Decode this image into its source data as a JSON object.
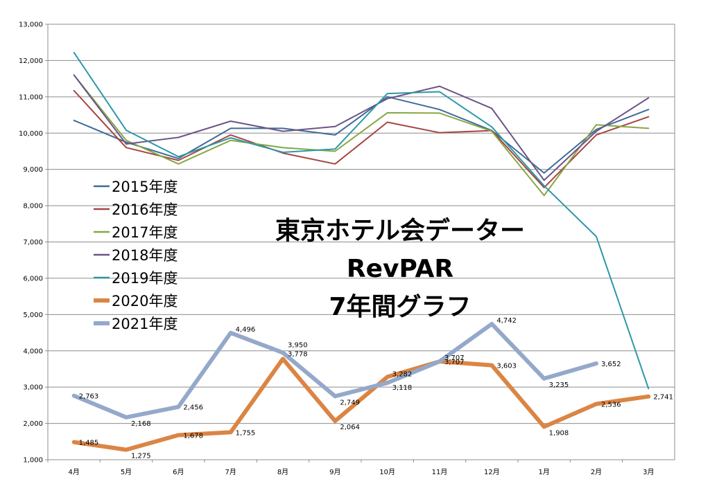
{
  "chart_data": {
    "type": "line",
    "title_lines": [
      "東京ホテル会データー",
      "RevPAR",
      "7年間グラフ"
    ],
    "categories": [
      "4月",
      "5月",
      "6月",
      "7月",
      "8月",
      "9月",
      "10月",
      "11月",
      "12月",
      "1月",
      "2月",
      "3月"
    ],
    "ylim": [
      1000,
      13000
    ],
    "yticks": [
      "1,000",
      "2,000",
      "3,000",
      "4,000",
      "5,000",
      "6,000",
      "7,000",
      "8,000",
      "9,000",
      "10,000",
      "11,000",
      "12,000",
      "13,000"
    ],
    "grid": true,
    "legend_position": "left-middle",
    "series": [
      {
        "name": "2015年度",
        "color": "#3e6b99",
        "width": 2,
        "values": [
          10350,
          9750,
          9300,
          10130,
          10130,
          9950,
          11000,
          10650,
          10070,
          8900,
          10100,
          10650
        ]
      },
      {
        "name": "2016年度",
        "color": "#a64442",
        "width": 2,
        "values": [
          11170,
          9600,
          9250,
          9950,
          9450,
          9150,
          10300,
          10010,
          10070,
          8500,
          9950,
          10450
        ]
      },
      {
        "name": "2017年度",
        "color": "#86a744",
        "width": 2,
        "values": [
          11600,
          9800,
          9150,
          9800,
          9600,
          9500,
          10560,
          10550,
          10050,
          8280,
          10230,
          10130
        ]
      },
      {
        "name": "2018年度",
        "color": "#6c5486",
        "width": 2,
        "values": [
          11600,
          9700,
          9880,
          10330,
          10050,
          10180,
          10950,
          11290,
          10680,
          8700,
          10050,
          10970
        ]
      },
      {
        "name": "2019年度",
        "color": "#2b98a8",
        "width": 2,
        "values": [
          12220,
          10080,
          9350,
          9870,
          9470,
          9560,
          11090,
          11140,
          10170,
          8550,
          7150,
          2960
        ]
      },
      {
        "name": "2020年度",
        "color": "#db8544",
        "width": 6,
        "values": [
          1485,
          1275,
          1678,
          1755,
          3778,
          2064,
          3282,
          3707,
          3603,
          1908,
          2536,
          2741
        ],
        "labels": [
          "1,485",
          "1,275",
          "1,678",
          "1,755",
          "3,778",
          "2,064",
          "3,282",
          "3,707",
          "3,603",
          "1,908",
          "2,536",
          "2,741"
        ]
      },
      {
        "name": "2021年度",
        "color": "#94a9ca",
        "width": 6,
        "values": [
          2763,
          2168,
          2456,
          4496,
          3950,
          2749,
          3118,
          3707,
          4742,
          3235,
          3652,
          null
        ],
        "labels": [
          "2,763",
          "2,168",
          "2,456",
          "4,496",
          "3,950",
          "2,749",
          "3,118",
          "3,707",
          "4,742",
          "3,235",
          "3,652",
          null
        ]
      }
    ]
  }
}
